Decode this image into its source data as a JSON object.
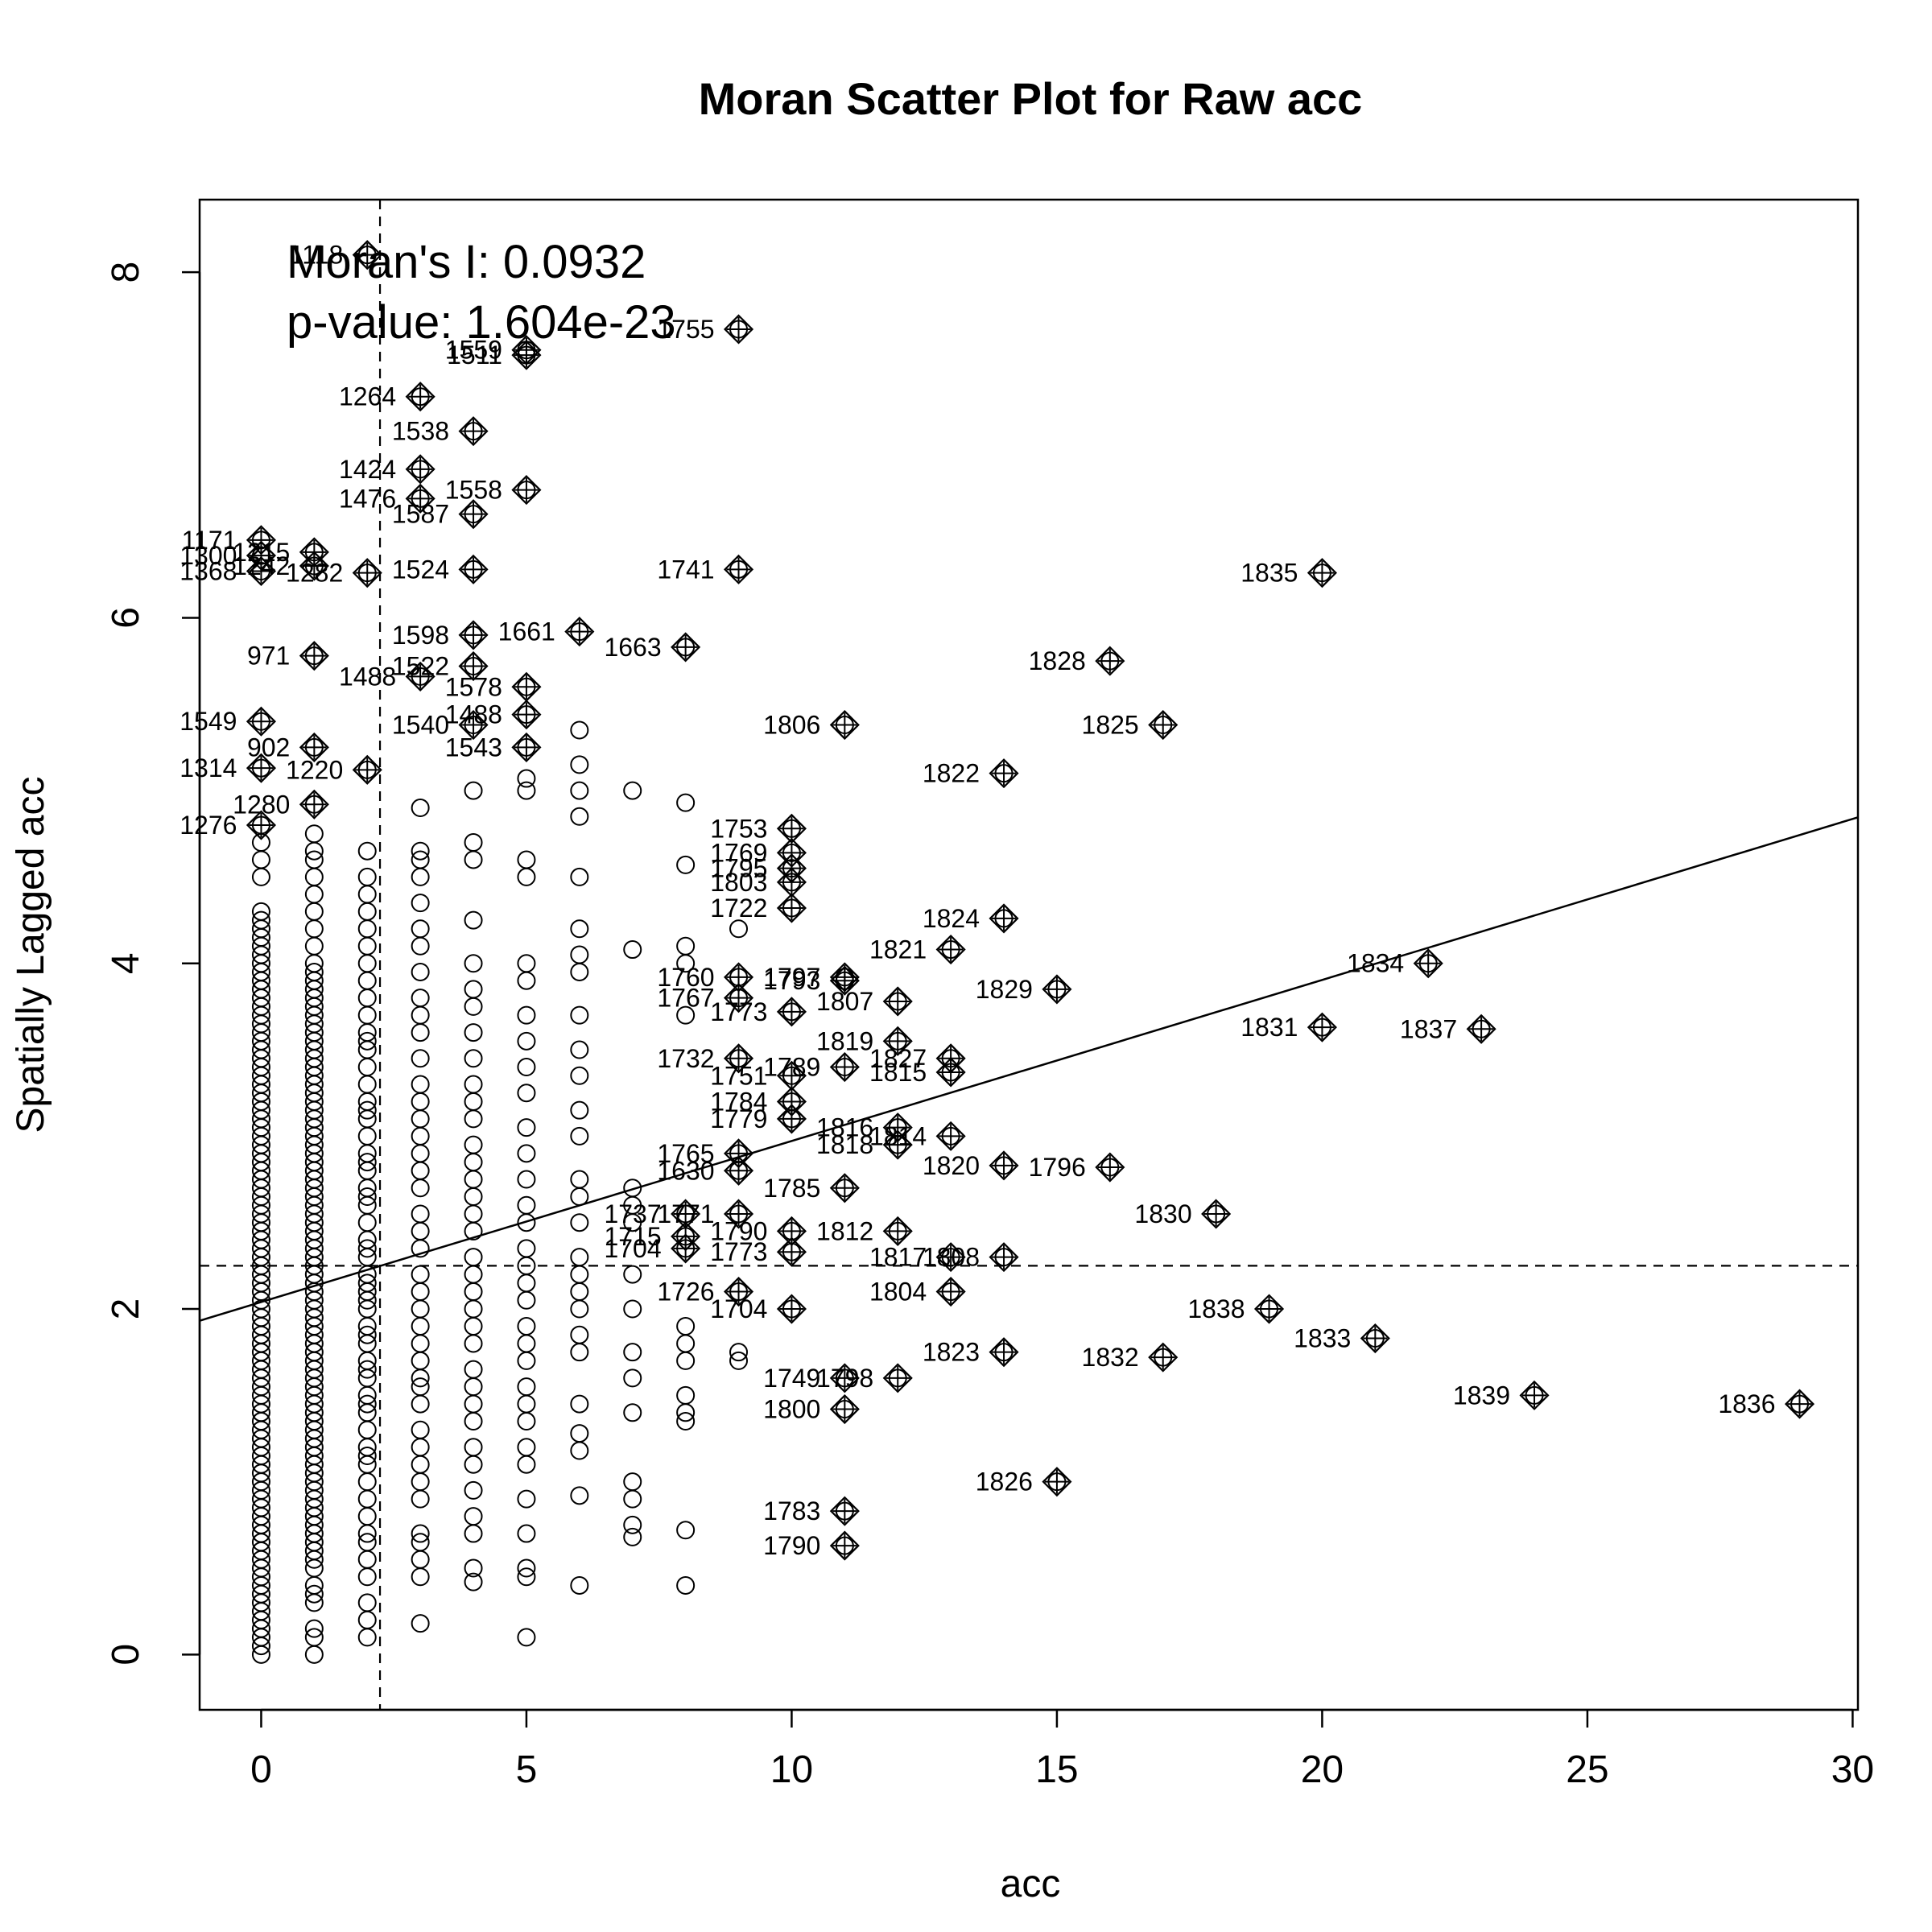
{
  "chart_data": {
    "type": "scatter",
    "title": "Moran Scatter Plot for Raw acc",
    "xlabel": "acc",
    "ylabel": "Spatially Lagged acc",
    "xlim": [
      -1.16,
      30.1
    ],
    "ylim": [
      -0.32,
      8.42
    ],
    "xticks": [
      0,
      5,
      10,
      15,
      20,
      25,
      30
    ],
    "yticks": [
      0,
      2,
      4,
      6,
      8
    ],
    "grid": false,
    "legend": "none",
    "annotations": {
      "moran_i": "Moran's I: 0.0932",
      "p_value": "p-value: 1.604e-23"
    },
    "reference_lines": {
      "vertical_mean_x": 2.24,
      "horizontal_mean_y": 2.25
    },
    "regression_line": {
      "intercept": 2.04,
      "slope": 0.0932
    },
    "influential_points": [
      {
        "label": "1118",
        "x": 2,
        "y": 8.1
      },
      {
        "label": "1755",
        "x": 9,
        "y": 7.67
      },
      {
        "label": "1559",
        "x": 5,
        "y": 7.55
      },
      {
        "label": "1511",
        "x": 5,
        "y": 7.52
      },
      {
        "label": "1264",
        "x": 3,
        "y": 7.28
      },
      {
        "label": "1538",
        "x": 4,
        "y": 7.08
      },
      {
        "label": "1424",
        "x": 3,
        "y": 6.86
      },
      {
        "label": "1558",
        "x": 5,
        "y": 6.74
      },
      {
        "label": "1476",
        "x": 3,
        "y": 6.69
      },
      {
        "label": "1587",
        "x": 4,
        "y": 6.6
      },
      {
        "label": "1171",
        "x": 0,
        "y": 6.45
      },
      {
        "label": "1300",
        "x": 0,
        "y": 6.36
      },
      {
        "label": "1215",
        "x": 1,
        "y": 6.38
      },
      {
        "label": "1368",
        "x": 0,
        "y": 6.27
      },
      {
        "label": "1242",
        "x": 1,
        "y": 6.3
      },
      {
        "label": "1282",
        "x": 2,
        "y": 6.26
      },
      {
        "label": "1524",
        "x": 4,
        "y": 6.28
      },
      {
        "label": "1741",
        "x": 9,
        "y": 6.28
      },
      {
        "label": "1835",
        "x": 20,
        "y": 6.26
      },
      {
        "label": "1661",
        "x": 6,
        "y": 5.92
      },
      {
        "label": "1598",
        "x": 4,
        "y": 5.9
      },
      {
        "label": "1663",
        "x": 8,
        "y": 5.83
      },
      {
        "label": "971",
        "x": 1,
        "y": 5.78
      },
      {
        "label": "1828",
        "x": 16,
        "y": 5.75
      },
      {
        "label": "1522",
        "x": 4,
        "y": 5.72
      },
      {
        "label": "1488",
        "x": 3,
        "y": 5.66
      },
      {
        "label": "1578",
        "x": 5,
        "y": 5.6
      },
      {
        "label": "1549",
        "x": 0,
        "y": 5.4
      },
      {
        "label": "1540",
        "x": 4,
        "y": 5.38
      },
      {
        "label": "1488",
        "x": 5,
        "y": 5.44
      },
      {
        "label": "1806",
        "x": 11,
        "y": 5.38
      },
      {
        "label": "1825",
        "x": 17,
        "y": 5.38
      },
      {
        "label": "1543",
        "x": 5,
        "y": 5.25
      },
      {
        "label": "902",
        "x": 1,
        "y": 5.25
      },
      {
        "label": "1314",
        "x": 0,
        "y": 5.13
      },
      {
        "label": "1220",
        "x": 2,
        "y": 5.12
      },
      {
        "label": "1822",
        "x": 14,
        "y": 5.1
      },
      {
        "label": "1280",
        "x": 1,
        "y": 4.92
      },
      {
        "label": "1276",
        "x": 0,
        "y": 4.8
      },
      {
        "label": "1753",
        "x": 10,
        "y": 4.78
      },
      {
        "label": "1769",
        "x": 10,
        "y": 4.64
      },
      {
        "label": "1795",
        "x": 10,
        "y": 4.55
      },
      {
        "label": "1803",
        "x": 10,
        "y": 4.47
      },
      {
        "label": "1722",
        "x": 10,
        "y": 4.32
      },
      {
        "label": "1824",
        "x": 14,
        "y": 4.26
      },
      {
        "label": "1821",
        "x": 13,
        "y": 4.08
      },
      {
        "label": "1834",
        "x": 22,
        "y": 4.0
      },
      {
        "label": "1760",
        "x": 9,
        "y": 3.92
      },
      {
        "label": "1797",
        "x": 11,
        "y": 3.92
      },
      {
        "label": "1793",
        "x": 11,
        "y": 3.9
      },
      {
        "label": "1829",
        "x": 15,
        "y": 3.85
      },
      {
        "label": "1767",
        "x": 9,
        "y": 3.8
      },
      {
        "label": "1807",
        "x": 12,
        "y": 3.78
      },
      {
        "label": "1773",
        "x": 10,
        "y": 3.72
      },
      {
        "label": "1831",
        "x": 20,
        "y": 3.63
      },
      {
        "label": "1837",
        "x": 23,
        "y": 3.62
      },
      {
        "label": "1819",
        "x": 12,
        "y": 3.55
      },
      {
        "label": "1827",
        "x": 13,
        "y": 3.45
      },
      {
        "label": "1732",
        "x": 9,
        "y": 3.45
      },
      {
        "label": "1789",
        "x": 11,
        "y": 3.4
      },
      {
        "label": "1815",
        "x": 13,
        "y": 3.37
      },
      {
        "label": "1751",
        "x": 10,
        "y": 3.35
      },
      {
        "label": "1784",
        "x": 10,
        "y": 3.2
      },
      {
        "label": "1779",
        "x": 10,
        "y": 3.1
      },
      {
        "label": "1816",
        "x": 12,
        "y": 3.05
      },
      {
        "label": "1814",
        "x": 13,
        "y": 3.0
      },
      {
        "label": "1818",
        "x": 12,
        "y": 2.95
      },
      {
        "label": "1765",
        "x": 9,
        "y": 2.9
      },
      {
        "label": "1820",
        "x": 14,
        "y": 2.83
      },
      {
        "label": "1796",
        "x": 16,
        "y": 2.82
      },
      {
        "label": "1630",
        "x": 9,
        "y": 2.8
      },
      {
        "label": "1785",
        "x": 11,
        "y": 2.7
      },
      {
        "label": "1830",
        "x": 18,
        "y": 2.55
      },
      {
        "label": "1771",
        "x": 9,
        "y": 2.55
      },
      {
        "label": "1812",
        "x": 12,
        "y": 2.45
      },
      {
        "label": "1790",
        "x": 10,
        "y": 2.45
      },
      {
        "label": "1715",
        "x": 8,
        "y": 2.42
      },
      {
        "label": "1737",
        "x": 8,
        "y": 2.55
      },
      {
        "label": "1704",
        "x": 8,
        "y": 2.35
      },
      {
        "label": "1773",
        "x": 10,
        "y": 2.33
      },
      {
        "label": "1817",
        "x": 13,
        "y": 2.3
      },
      {
        "label": "1808",
        "x": 14,
        "y": 2.3
      },
      {
        "label": "1804",
        "x": 13,
        "y": 2.1
      },
      {
        "label": "1726",
        "x": 9,
        "y": 2.1
      },
      {
        "label": "1704",
        "x": 10,
        "y": 2.0
      },
      {
        "label": "1838",
        "x": 19,
        "y": 2.0
      },
      {
        "label": "1833",
        "x": 21,
        "y": 1.83
      },
      {
        "label": "1823",
        "x": 14,
        "y": 1.75
      },
      {
        "label": "1832",
        "x": 17,
        "y": 1.72
      },
      {
        "label": "1749",
        "x": 11,
        "y": 1.6
      },
      {
        "label": "1798",
        "x": 12,
        "y": 1.6
      },
      {
        "label": "1800",
        "x": 11,
        "y": 1.42
      },
      {
        "label": "1839",
        "x": 24,
        "y": 1.5
      },
      {
        "label": "1836",
        "x": 29,
        "y": 1.45
      },
      {
        "label": "1826",
        "x": 15,
        "y": 1.0
      },
      {
        "label": "1783",
        "x": 11,
        "y": 0.83
      },
      {
        "label": "1790",
        "x": 11,
        "y": 0.63
      }
    ],
    "regular_points": {
      "0": [
        0.0,
        0.05,
        0.1,
        0.15,
        0.2,
        0.25,
        0.3,
        0.35,
        0.4,
        0.45,
        0.5,
        0.55,
        0.6,
        0.65,
        0.7,
        0.75,
        0.8,
        0.85,
        0.9,
        0.95,
        1.0,
        1.05,
        1.1,
        1.15,
        1.2,
        1.25,
        1.3,
        1.35,
        1.4,
        1.45,
        1.5,
        1.55,
        1.6,
        1.65,
        1.7,
        1.75,
        1.8,
        1.85,
        1.9,
        1.95,
        2.0,
        2.05,
        2.1,
        2.15,
        2.2,
        2.25,
        2.3,
        2.35,
        2.4,
        2.45,
        2.5,
        2.55,
        2.6,
        2.65,
        2.7,
        2.75,
        2.8,
        2.85,
        2.9,
        2.95,
        3.0,
        3.05,
        3.1,
        3.15,
        3.2,
        3.25,
        3.3,
        3.35,
        3.4,
        3.45,
        3.5,
        3.55,
        3.6,
        3.65,
        3.7,
        3.75,
        3.8,
        3.85,
        3.9,
        3.95,
        4.0,
        4.05,
        4.1,
        4.15,
        4.2,
        4.25,
        4.3,
        4.5,
        4.6,
        4.7
      ],
      "1": [
        0.0,
        0.1,
        0.15,
        0.3,
        0.35,
        0.4,
        0.5,
        0.55,
        0.6,
        0.65,
        0.7,
        0.75,
        0.8,
        0.85,
        0.9,
        0.95,
        1.0,
        1.05,
        1.1,
        1.15,
        1.2,
        1.25,
        1.3,
        1.35,
        1.4,
        1.45,
        1.5,
        1.55,
        1.6,
        1.65,
        1.7,
        1.75,
        1.8,
        1.85,
        1.9,
        1.95,
        2.0,
        2.05,
        2.1,
        2.15,
        2.2,
        2.25,
        2.3,
        2.35,
        2.4,
        2.45,
        2.5,
        2.55,
        2.6,
        2.65,
        2.7,
        2.75,
        2.8,
        2.85,
        2.9,
        2.95,
        3.0,
        3.05,
        3.1,
        3.15,
        3.2,
        3.25,
        3.3,
        3.35,
        3.4,
        3.45,
        3.5,
        3.55,
        3.6,
        3.65,
        3.7,
        3.75,
        3.8,
        3.85,
        3.9,
        3.95,
        4.0,
        4.1,
        4.2,
        4.3,
        4.4,
        4.5,
        4.6,
        4.65,
        4.75
      ],
      "2": [
        0.1,
        0.2,
        0.3,
        0.45,
        0.55,
        0.65,
        0.7,
        0.8,
        0.9,
        1.0,
        1.1,
        1.15,
        1.2,
        1.3,
        1.4,
        1.45,
        1.5,
        1.6,
        1.65,
        1.7,
        1.8,
        1.85,
        1.9,
        2.0,
        2.05,
        2.1,
        2.15,
        2.2,
        2.3,
        2.35,
        2.4,
        2.5,
        2.6,
        2.65,
        2.7,
        2.8,
        2.85,
        2.9,
        3.0,
        3.1,
        3.15,
        3.2,
        3.3,
        3.4,
        3.5,
        3.55,
        3.6,
        3.7,
        3.8,
        3.9,
        4.0,
        4.1,
        4.2,
        4.3,
        4.4,
        4.5,
        4.65
      ],
      "3": [
        0.18,
        0.45,
        0.55,
        0.65,
        0.7,
        0.9,
        1.0,
        1.1,
        1.2,
        1.3,
        1.45,
        1.55,
        1.6,
        1.7,
        1.8,
        1.9,
        2.0,
        2.1,
        2.2,
        2.35,
        2.45,
        2.55,
        2.7,
        2.8,
        2.9,
        3.0,
        3.1,
        3.2,
        3.3,
        3.45,
        3.6,
        3.7,
        3.8,
        3.95,
        4.1,
        4.2,
        4.35,
        4.5,
        4.6,
        4.65,
        4.9
      ],
      "4": [
        0.42,
        0.5,
        0.7,
        0.8,
        0.95,
        1.1,
        1.2,
        1.35,
        1.45,
        1.55,
        1.65,
        1.8,
        1.9,
        2.0,
        2.1,
        2.2,
        2.3,
        2.45,
        2.55,
        2.65,
        2.75,
        2.85,
        2.95,
        3.1,
        3.2,
        3.3,
        3.45,
        3.6,
        3.75,
        3.85,
        4.0,
        4.25,
        4.6,
        4.7,
        5.0
      ],
      "5": [
        0.1,
        0.45,
        0.5,
        0.7,
        0.9,
        1.1,
        1.2,
        1.35,
        1.45,
        1.55,
        1.7,
        1.8,
        1.9,
        2.05,
        2.15,
        2.25,
        2.35,
        2.5,
        2.6,
        2.75,
        2.9,
        3.05,
        3.25,
        3.4,
        3.55,
        3.7,
        3.9,
        4.0,
        4.5,
        4.6,
        5.0,
        5.07
      ],
      "6": [
        0.4,
        0.92,
        1.18,
        1.28,
        1.45,
        1.75,
        1.85,
        2.0,
        2.1,
        2.2,
        2.3,
        2.5,
        2.65,
        2.75,
        3.0,
        3.15,
        3.35,
        3.5,
        3.7,
        3.95,
        4.05,
        4.2,
        4.5,
        4.85,
        5.0,
        5.15,
        5.35
      ],
      "7": [
        0.68,
        0.75,
        0.9,
        1.0,
        1.4,
        1.6,
        1.75,
        2.0,
        2.2,
        2.5,
        2.6,
        2.7,
        4.08,
        5.0
      ],
      "8": [
        0.4,
        0.72,
        1.35,
        1.4,
        1.5,
        1.7,
        1.8,
        1.9,
        3.7,
        4.0,
        4.1,
        4.57,
        4.93
      ],
      "9": [
        1.7,
        1.75,
        4.2
      ]
    }
  }
}
